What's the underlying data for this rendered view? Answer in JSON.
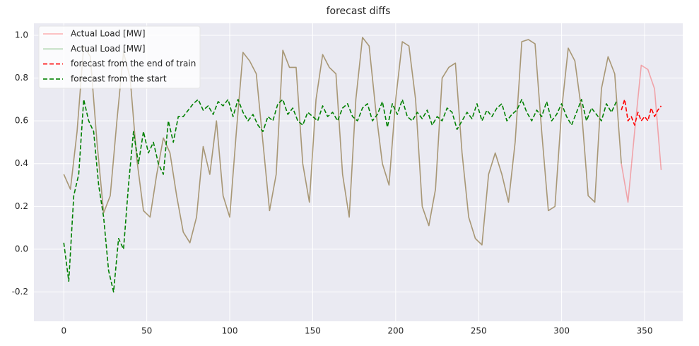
{
  "chart_data": {
    "type": "line",
    "title": "forecast diffs",
    "xlim": [
      -18,
      373
    ],
    "ylim": [
      -0.337,
      1.056
    ],
    "xticks": [
      0,
      50,
      100,
      150,
      200,
      250,
      300,
      350
    ],
    "yticks": [
      -0.2,
      {
        "value": 0,
        "label": "0.0"
      },
      0.2,
      0.4,
      0.6,
      0.8,
      {
        "value": 1,
        "label": "1.0"
      }
    ],
    "grid": true,
    "legend": "upper left",
    "series": [
      {
        "name": "Actual Load [MW]",
        "color": "#ff0000",
        "alpha": 0.3,
        "linestyle": "solid",
        "x": [
          0,
          4,
          8,
          12,
          16,
          20,
          24,
          28,
          32,
          36,
          40,
          44,
          48,
          52,
          56,
          60,
          64,
          68,
          72,
          76,
          80,
          84,
          88,
          92,
          96,
          100,
          104,
          108,
          112,
          116,
          120,
          124,
          128,
          132,
          136,
          140,
          144,
          148,
          152,
          156,
          160,
          164,
          168,
          172,
          176,
          180,
          184,
          188,
          192,
          196,
          200,
          204,
          208,
          212,
          216,
          220,
          224,
          228,
          232,
          236,
          240,
          244,
          248,
          252,
          256,
          260,
          264,
          268,
          272,
          276,
          280,
          284,
          288,
          292,
          296,
          300,
          304,
          308,
          312,
          316,
          320,
          324,
          328,
          332,
          336,
          340,
          344,
          348,
          352,
          356,
          360
        ],
        "values": [
          0.35,
          0.28,
          0.55,
          0.95,
          0.9,
          0.5,
          0.17,
          0.25,
          0.6,
          0.92,
          0.8,
          0.42,
          0.18,
          0.15,
          0.35,
          0.52,
          0.45,
          0.25,
          0.08,
          0.03,
          0.15,
          0.48,
          0.35,
          0.6,
          0.25,
          0.15,
          0.55,
          0.92,
          0.88,
          0.82,
          0.5,
          0.18,
          0.35,
          0.93,
          0.85,
          0.85,
          0.4,
          0.22,
          0.7,
          0.91,
          0.85,
          0.82,
          0.35,
          0.15,
          0.7,
          0.99,
          0.95,
          0.65,
          0.4,
          0.3,
          0.7,
          0.97,
          0.95,
          0.7,
          0.2,
          0.11,
          0.28,
          0.8,
          0.85,
          0.87,
          0.45,
          0.15,
          0.05,
          0.02,
          0.35,
          0.45,
          0.35,
          0.22,
          0.5,
          0.97,
          0.98,
          0.96,
          0.55,
          0.18,
          0.2,
          0.65,
          0.94,
          0.88,
          0.65,
          0.25,
          0.22,
          0.75,
          0.9,
          0.82,
          0.4,
          0.22,
          0.55,
          0.86,
          0.84,
          0.75,
          0.37
        ]
      },
      {
        "name": "Actual Load [MW]",
        "color": "#008000",
        "alpha": 0.3,
        "linestyle": "solid",
        "x": [
          0,
          4,
          8,
          12,
          16,
          20,
          24,
          28,
          32,
          36,
          40,
          44,
          48,
          52,
          56,
          60,
          64,
          68,
          72,
          76,
          80,
          84,
          88,
          92,
          96,
          100,
          104,
          108,
          112,
          116,
          120,
          124,
          128,
          132,
          136,
          140,
          144,
          148,
          152,
          156,
          160,
          164,
          168,
          172,
          176,
          180,
          184,
          188,
          192,
          196,
          200,
          204,
          208,
          212,
          216,
          220,
          224,
          228,
          232,
          236,
          240,
          244,
          248,
          252,
          256,
          260,
          264,
          268,
          272,
          276,
          280,
          284,
          288,
          292,
          296,
          300,
          304,
          308,
          312,
          316,
          320,
          324,
          328,
          332,
          336
        ],
        "values": [
          0.35,
          0.28,
          0.55,
          0.95,
          0.9,
          0.5,
          0.17,
          0.25,
          0.6,
          0.92,
          0.8,
          0.42,
          0.18,
          0.15,
          0.35,
          0.52,
          0.45,
          0.25,
          0.08,
          0.03,
          0.15,
          0.48,
          0.35,
          0.6,
          0.25,
          0.15,
          0.55,
          0.92,
          0.88,
          0.82,
          0.5,
          0.18,
          0.35,
          0.93,
          0.85,
          0.85,
          0.4,
          0.22,
          0.7,
          0.91,
          0.85,
          0.82,
          0.35,
          0.15,
          0.7,
          0.99,
          0.95,
          0.65,
          0.4,
          0.3,
          0.7,
          0.97,
          0.95,
          0.7,
          0.2,
          0.11,
          0.28,
          0.8,
          0.85,
          0.87,
          0.45,
          0.15,
          0.05,
          0.02,
          0.35,
          0.45,
          0.35,
          0.22,
          0.5,
          0.97,
          0.98,
          0.96,
          0.55,
          0.18,
          0.2,
          0.65,
          0.94,
          0.88,
          0.65,
          0.25,
          0.22,
          0.75,
          0.9,
          0.82,
          0.4
        ]
      },
      {
        "name": "forecast from the end of train",
        "color": "#ff0000",
        "alpha": 1,
        "linestyle": "dashed",
        "x": [
          336,
          338,
          340,
          342,
          344,
          346,
          348,
          350,
          352,
          354,
          356,
          358,
          360
        ],
        "values": [
          0.65,
          0.7,
          0.6,
          0.62,
          0.58,
          0.64,
          0.6,
          0.62,
          0.6,
          0.66,
          0.62,
          0.65,
          0.67
        ]
      },
      {
        "name": "forecast from the start",
        "color": "#008000",
        "alpha": 1,
        "linestyle": "dashed",
        "x": [
          0,
          3,
          6,
          9,
          12,
          15,
          18,
          21,
          24,
          27,
          30,
          33,
          36,
          39,
          42,
          45,
          48,
          51,
          54,
          57,
          60,
          63,
          66,
          69,
          72,
          75,
          78,
          81,
          84,
          87,
          90,
          93,
          96,
          99,
          102,
          105,
          108,
          111,
          114,
          117,
          120,
          123,
          126,
          129,
          132,
          135,
          138,
          141,
          144,
          147,
          150,
          153,
          156,
          159,
          162,
          165,
          168,
          171,
          174,
          177,
          180,
          183,
          186,
          189,
          192,
          195,
          198,
          201,
          204,
          207,
          210,
          213,
          216,
          219,
          222,
          225,
          228,
          231,
          234,
          237,
          240,
          243,
          246,
          249,
          252,
          255,
          258,
          261,
          264,
          267,
          270,
          273,
          276,
          279,
          282,
          285,
          288,
          291,
          294,
          297,
          300,
          303,
          306,
          309,
          312,
          315,
          318,
          321,
          324,
          327,
          330,
          333
        ],
        "values": [
          0.03,
          -0.15,
          0.25,
          0.35,
          0.7,
          0.6,
          0.55,
          0.3,
          0.15,
          -0.1,
          -0.2,
          0.05,
          0.0,
          0.3,
          0.55,
          0.4,
          0.55,
          0.45,
          0.5,
          0.4,
          0.35,
          0.6,
          0.5,
          0.62,
          0.62,
          0.65,
          0.68,
          0.7,
          0.65,
          0.67,
          0.63,
          0.69,
          0.67,
          0.7,
          0.62,
          0.7,
          0.64,
          0.6,
          0.63,
          0.58,
          0.55,
          0.62,
          0.6,
          0.68,
          0.7,
          0.63,
          0.66,
          0.6,
          0.58,
          0.64,
          0.62,
          0.6,
          0.67,
          0.62,
          0.64,
          0.6,
          0.66,
          0.68,
          0.62,
          0.6,
          0.66,
          0.68,
          0.6,
          0.63,
          0.69,
          0.57,
          0.68,
          0.63,
          0.7,
          0.62,
          0.6,
          0.64,
          0.61,
          0.65,
          0.58,
          0.62,
          0.6,
          0.66,
          0.64,
          0.56,
          0.6,
          0.64,
          0.61,
          0.68,
          0.6,
          0.65,
          0.62,
          0.66,
          0.68,
          0.6,
          0.63,
          0.65,
          0.7,
          0.64,
          0.6,
          0.65,
          0.62,
          0.69,
          0.6,
          0.63,
          0.68,
          0.62,
          0.58,
          0.64,
          0.7,
          0.6,
          0.66,
          0.63,
          0.6,
          0.68,
          0.64,
          0.69
        ]
      }
    ]
  }
}
